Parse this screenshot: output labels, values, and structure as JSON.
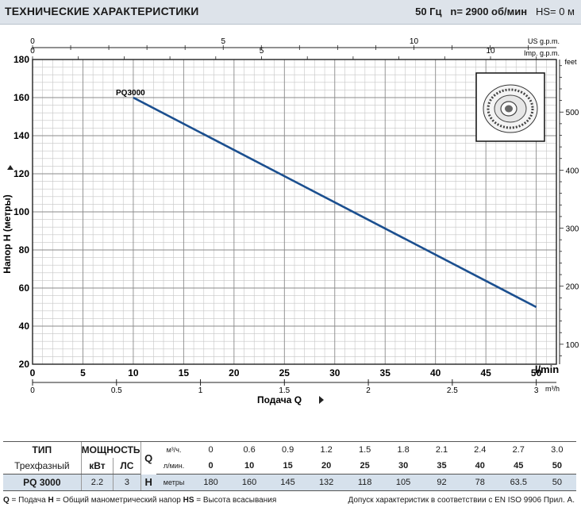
{
  "header": {
    "title": "ТЕХНИЧЕСКИЕ ХАРАКТЕРИСТИКИ",
    "freq": "50 Гц",
    "speed": "n= 2900  об/мин",
    "hs": "HS= 0 м"
  },
  "chart_data": {
    "type": "line",
    "series": [
      {
        "name": "PQ3000",
        "x": [
          10,
          50
        ],
        "y": [
          160,
          50
        ]
      }
    ],
    "xlabel": "Подача Q",
    "ylabel": "Напор H  (метры)",
    "x_unit": "l/min",
    "xlim": [
      0,
      52
    ],
    "ylim": [
      20,
      180
    ],
    "x_ticks": [
      0,
      5,
      10,
      15,
      20,
      25,
      30,
      35,
      40,
      45,
      50
    ],
    "y_ticks": [
      20,
      40,
      60,
      80,
      100,
      120,
      140,
      160,
      180
    ],
    "axis_m3h": {
      "unit": "m³/h",
      "ticks": [
        "0",
        "0.5",
        "1",
        "1.5",
        "2",
        "2.5",
        "3"
      ]
    },
    "axis_usgpm": {
      "unit": "US g.p.m.",
      "ticks": [
        "0",
        "5",
        "10"
      ]
    },
    "axis_impgpm": {
      "unit": "Imp. g.p.m.",
      "ticks": [
        "0",
        "5",
        "10"
      ]
    },
    "axis_feet": {
      "unit": "feet",
      "ticks": [
        "100",
        "200",
        "300",
        "400",
        "500"
      ]
    },
    "grid": true
  },
  "table": {
    "col_type": "ТИП",
    "col_power": "МОЩНОСТЬ",
    "type_sub": "Трехфазный",
    "kw": "кВт",
    "hp": "ЛС",
    "q_symbol": "Q",
    "q_unit1": "м³/ч.",
    "q_unit2": "л/мин.",
    "h_symbol": "H",
    "h_unit": "метры",
    "q_m3h": [
      "0",
      "0.6",
      "0.9",
      "1.2",
      "1.5",
      "1.8",
      "2.1",
      "2.4",
      "2.7",
      "3.0"
    ],
    "q_lmin": [
      "0",
      "10",
      "15",
      "20",
      "25",
      "30",
      "35",
      "40",
      "45",
      "50"
    ],
    "model": "PQ 3000",
    "model_kw": "2.2",
    "model_hp": "3",
    "h_values": [
      "180",
      "160",
      "145",
      "132",
      "118",
      "105",
      "92",
      "78",
      "63.5",
      "50"
    ]
  },
  "footer": {
    "legend_q": "Q",
    "legend_q_text": " = Подача  ",
    "legend_h": "H",
    "legend_h_text": " = Общий манометрический напор  ",
    "legend_hs": "HS",
    "legend_hs_text": " = Высота всасывания",
    "tolerance": "Допуск характеристик в соответствии с EN ISO 9906 Прил. A."
  },
  "colors": {
    "curve": "#1b4f8f",
    "header_bg": "#dde3ea",
    "table_model_bg": "#d6e1ec"
  }
}
